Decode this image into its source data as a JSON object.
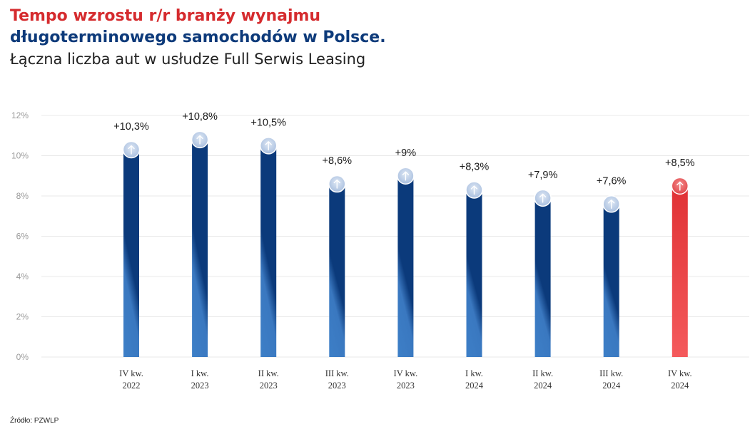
{
  "title_line1": "Tempo wzrostu r/r branży wynajmu",
  "title_line2": "długoterminowego samochodów w Polsce.",
  "subtitle": "Łączna liczba aut w usłudze Full Serwis Leasing",
  "source": "Źródło: PZWLP",
  "colors": {
    "blue_dark": "#0b3a7b",
    "blue_light": "#3d7fc7",
    "red": "#e03235",
    "red_light": "#f45a5c",
    "title_red": "#d52b2e",
    "title_blue": "#0d3a7a"
  },
  "icon": "arrow-up-icon",
  "chart_data": {
    "type": "bar",
    "categories": [
      [
        "IV kw.",
        "2022"
      ],
      [
        "I kw.",
        "2023"
      ],
      [
        "II kw.",
        "2023"
      ],
      [
        "III kw.",
        "2023"
      ],
      [
        "IV kw.",
        "2023"
      ],
      [
        "I kw.",
        "2024"
      ],
      [
        "II kw.",
        "2024"
      ],
      [
        "III kw.",
        "2024"
      ],
      [
        "IV kw.",
        "2024"
      ]
    ],
    "values": [
      10.3,
      10.8,
      10.5,
      8.6,
      9,
      8.3,
      7.9,
      7.6,
      8.5
    ],
    "labels": [
      "+10,3%",
      "+10,8%",
      "+10,5%",
      "+8,6%",
      "+9%",
      "+8,3%",
      "+7,9%",
      "+7,6%",
      "+8,5%"
    ],
    "highlight_index": 8,
    "ylim": [
      0,
      12
    ],
    "yticks": [
      0,
      2,
      4,
      6,
      8,
      10,
      12
    ],
    "ytick_labels": [
      "0%",
      "2%",
      "4%",
      "6%",
      "8%",
      "10%",
      "12%"
    ],
    "grid": true
  }
}
